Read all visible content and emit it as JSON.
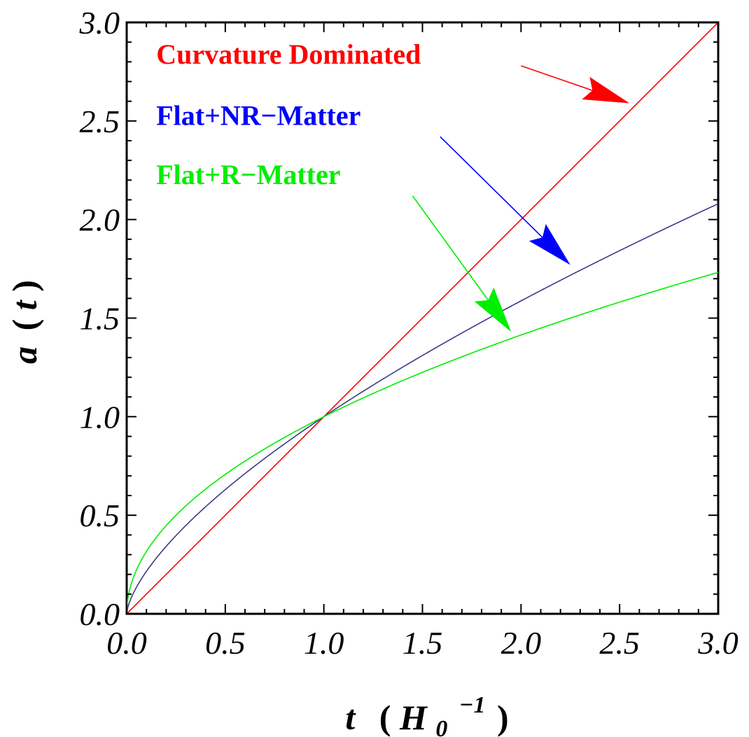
{
  "chart_data": {
    "type": "line",
    "xlabel": {
      "main": "t",
      "paren_open": "(",
      "H": "H",
      "sub": "0",
      "sup": "−1",
      "paren_close": ")"
    },
    "ylabel": {
      "main": "a",
      "paren_open": "(",
      "var": "t",
      "paren_close": ")"
    },
    "xlim": [
      0,
      3
    ],
    "ylim": [
      0,
      3
    ],
    "x_ticks": [
      "0.0",
      "0.5",
      "1.0",
      "1.5",
      "2.0",
      "2.5",
      "3.0"
    ],
    "y_ticks": [
      "0.0",
      "0.5",
      "1.0",
      "1.5",
      "2.0",
      "2.5",
      "3.0"
    ],
    "grid": false,
    "series": [
      {
        "key": "curvature",
        "name": "Curvature Dominated",
        "color": "#ff0000",
        "text_color": "#ff0000",
        "exponent": 1.0,
        "x": [
          0,
          0.5,
          1.0,
          1.5,
          2.0,
          2.5,
          3.0
        ],
        "y": [
          0,
          0.5,
          1.0,
          1.5,
          2.0,
          2.5,
          3.0
        ],
        "label_anchor": [
          0.15,
          2.79
        ],
        "arrow_from": [
          2.0,
          2.78
        ],
        "arrow_to": [
          2.55,
          2.59
        ]
      },
      {
        "key": "nr",
        "name": "Flat+NR−Matter",
        "color": "#3a3a8c",
        "text_color": "#0000ff",
        "exponent": 0.6667,
        "x": [
          0,
          0.5,
          1.0,
          1.5,
          2.0,
          2.5,
          3.0
        ],
        "y": [
          0,
          0.63,
          1.0,
          1.31,
          1.59,
          1.84,
          2.08
        ],
        "label_anchor": [
          0.15,
          2.48
        ],
        "arrow_from": [
          1.59,
          2.42
        ],
        "arrow_to": [
          2.25,
          1.77
        ]
      },
      {
        "key": "r",
        "name": "Flat+R−Matter",
        "color": "#00ee00",
        "text_color": "#00ee00",
        "exponent": 0.5,
        "x": [
          0,
          0.5,
          1.0,
          1.5,
          2.0,
          2.5,
          3.0
        ],
        "y": [
          0,
          0.71,
          1.0,
          1.22,
          1.41,
          1.58,
          1.73
        ],
        "label_anchor": [
          0.15,
          2.18
        ],
        "arrow_from": [
          1.45,
          2.12
        ],
        "arrow_to": [
          1.95,
          1.43
        ]
      }
    ]
  }
}
